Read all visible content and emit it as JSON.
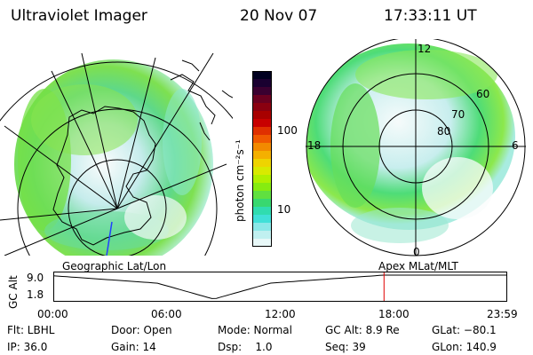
{
  "header": {
    "instrument": "Ultraviolet Imager",
    "date": "20 Nov 07",
    "time": "17:33:11 UT"
  },
  "colorbar": {
    "unit_label": "photon cm⁻²s⁻¹",
    "ticks": [
      "100",
      "10"
    ],
    "colors": [
      "#000020",
      "#1a0030",
      "#3a0030",
      "#6a0020",
      "#8a0010",
      "#a80000",
      "#c80000",
      "#e03000",
      "#f05a00",
      "#f28a00",
      "#f4b000",
      "#eed400",
      "#d8ea00",
      "#b0f000",
      "#86ec10",
      "#60e040",
      "#38d870",
      "#30dcb0",
      "#40e0d8",
      "#8ae8e8",
      "#c0f0f0",
      "#e8f8f8"
    ]
  },
  "left_map": {
    "caption": "Geographic Lat/Lon"
  },
  "right_map": {
    "caption": "Apex MLat/MLT",
    "mlt_labels": {
      "top": "12",
      "left": "18",
      "right": "6",
      "bottom": "0"
    },
    "lat_labels": [
      "60",
      "70",
      "80"
    ]
  },
  "timeline": {
    "ylabel": "GC Alt",
    "y_ticks": [
      "9.0",
      "1.8"
    ],
    "x_ticks": [
      "00:00",
      "06:00",
      "12:00",
      "18:00",
      "23:59"
    ],
    "marker_fraction": 0.73
  },
  "status": {
    "filter": "Flt: LBHL",
    "ip": "IP: 36.0",
    "door": "Door: Open",
    "gain": "Gain: 14",
    "mode": "Mode: Normal",
    "dsp": "Dsp:    1.0",
    "gc_alt": "GC Alt: 8.9 Re",
    "seq": "Seq: 39",
    "glat": "GLat: −80.1",
    "glon": "GLon: 140.9"
  }
}
